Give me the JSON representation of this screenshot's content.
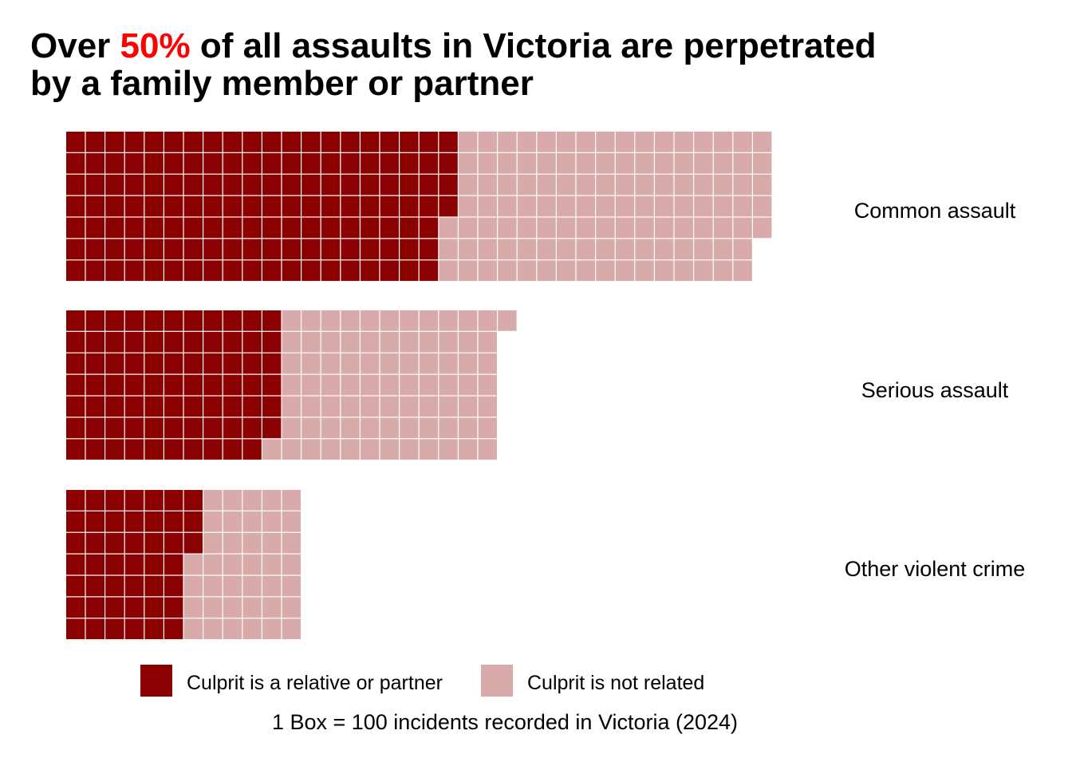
{
  "title": {
    "prefix": "Over ",
    "highlight": "50%",
    "suffix_line1": " of all assaults in Victoria are perpetrated",
    "line2": "by a family member or partner"
  },
  "colors": {
    "related": "#8b0000",
    "not_related": "#d8aaaa",
    "highlight": "#ff0000",
    "gridline": "#ffffff"
  },
  "chart_data": {
    "type": "waffle",
    "unit": "1 Box = 100 incidents recorded in Victoria (2024)",
    "box_value": 100,
    "rows_per_column": 7,
    "categories": [
      "Common assault",
      "Serious assault",
      "Other violent crime"
    ],
    "series": [
      {
        "name": "Culprit is a relative or partner",
        "boxes": [
          137,
          76,
          45
        ]
      },
      {
        "name": "Culprit is not related",
        "boxes": [
          113,
          79,
          39
        ]
      }
    ],
    "legend_position": "bottom"
  },
  "legend": {
    "related_label": "Culprit is a relative or partner",
    "not_related_label": "Culprit is not related"
  },
  "caption": "1 Box = 100 incidents recorded in Victoria (2024)"
}
